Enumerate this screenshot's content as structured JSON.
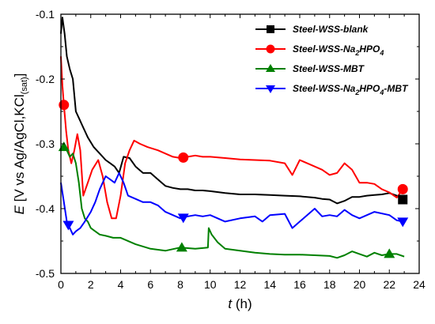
{
  "chart_data": {
    "type": "line",
    "xlabel_symbol": "t",
    "xlabel_unit": " (h)",
    "ylabel_symbol": "E",
    "ylabel_rest": " [V vs Ag/AgCl,KCl",
    "ylabel_sub": "(sat)",
    "ylabel_end": "]",
    "xlim": [
      0,
      24
    ],
    "ylim": [
      -0.5,
      -0.1
    ],
    "xticks": [
      "0",
      "2",
      "4",
      "6",
      "8",
      "10",
      "12",
      "14",
      "16",
      "18",
      "20",
      "22",
      "24"
    ],
    "yticks": [
      "-0.1",
      "-0.2",
      "-0.3",
      "-0.4",
      "-0.5"
    ],
    "legend_position": "top-right",
    "grid": false,
    "series": [
      {
        "name": "Steel-WSS-blank",
        "legend_parts": [
          [
            "Steel-WSS-blank",
            false
          ]
        ],
        "color": "#000000",
        "marker": "square",
        "marker_x": [
          22.9
        ],
        "x": [
          0,
          0.1,
          0.25,
          0.4,
          0.6,
          0.8,
          1.0,
          1.2,
          1.5,
          1.8,
          2.2,
          2.6,
          3.0,
          3.3,
          3.6,
          3.9,
          4.2,
          4.6,
          5.0,
          5.5,
          6.0,
          6.5,
          7.0,
          7.5,
          8.0,
          8.5,
          9.0,
          9.5,
          10.0,
          11.0,
          12.0,
          13.0,
          14.0,
          15.0,
          16.0,
          17.0,
          17.5,
          18.0,
          18.5,
          19.0,
          19.5,
          20.0,
          20.5,
          21.0,
          21.5,
          22.0,
          22.5,
          22.9
        ],
        "y": [
          -0.13,
          -0.105,
          -0.13,
          -0.165,
          -0.185,
          -0.2,
          -0.25,
          -0.26,
          -0.275,
          -0.29,
          -0.305,
          -0.315,
          -0.325,
          -0.33,
          -0.335,
          -0.345,
          -0.32,
          -0.322,
          -0.335,
          -0.345,
          -0.345,
          -0.355,
          -0.365,
          -0.368,
          -0.37,
          -0.37,
          -0.372,
          -0.372,
          -0.373,
          -0.376,
          -0.378,
          -0.378,
          -0.379,
          -0.38,
          -0.381,
          -0.383,
          -0.385,
          -0.386,
          -0.392,
          -0.388,
          -0.382,
          -0.382,
          -0.38,
          -0.379,
          -0.378,
          -0.376,
          -0.38,
          -0.386
        ]
      },
      {
        "name": "Steel-WSS-Na2HPO4",
        "legend_parts": [
          [
            "Steel-WSS-Na",
            false
          ],
          [
            "2",
            true
          ],
          [
            "HPO",
            false
          ],
          [
            "4",
            true
          ]
        ],
        "color": "#ff0000",
        "marker": "circle",
        "marker_x": [
          0.2,
          8.2,
          22.9
        ],
        "x": [
          0,
          0.1,
          0.2,
          0.35,
          0.5,
          0.7,
          0.9,
          1.1,
          1.3,
          1.5,
          1.8,
          2.1,
          2.5,
          2.8,
          3.1,
          3.4,
          3.7,
          4.0,
          4.3,
          4.6,
          4.9,
          5.3,
          5.8,
          6.5,
          7.0,
          7.5,
          8.0,
          8.5,
          9.0,
          9.5,
          10.0,
          11.0,
          12.0,
          13.0,
          14.0,
          15.0,
          15.5,
          16.0,
          16.5,
          17.0,
          17.5,
          18.0,
          18.5,
          19.0,
          19.5,
          20.0,
          20.5,
          21.0,
          21.5,
          22.0,
          22.5,
          22.9
        ],
        "y": [
          -0.165,
          -0.21,
          -0.24,
          -0.28,
          -0.31,
          -0.33,
          -0.31,
          -0.285,
          -0.31,
          -0.38,
          -0.36,
          -0.34,
          -0.325,
          -0.35,
          -0.39,
          -0.415,
          -0.415,
          -0.38,
          -0.33,
          -0.31,
          -0.295,
          -0.3,
          -0.305,
          -0.31,
          -0.315,
          -0.32,
          -0.322,
          -0.32,
          -0.318,
          -0.32,
          -0.32,
          -0.322,
          -0.324,
          -0.325,
          -0.326,
          -0.33,
          -0.348,
          -0.325,
          -0.33,
          -0.335,
          -0.34,
          -0.348,
          -0.345,
          -0.33,
          -0.34,
          -0.36,
          -0.36,
          -0.362,
          -0.37,
          -0.375,
          -0.383,
          -0.37
        ]
      },
      {
        "name": "Steel-WSS-MBT",
        "legend_parts": [
          [
            "Steel-WSS-MBT",
            false
          ]
        ],
        "color": "#008000",
        "marker": "triangle-up",
        "marker_x": [
          0.2,
          8.1,
          22.0
        ],
        "x": [
          0,
          0.2,
          0.4,
          0.6,
          0.8,
          1.0,
          1.2,
          1.4,
          1.6,
          1.8,
          2.0,
          2.3,
          2.6,
          3.0,
          3.5,
          4.0,
          5.0,
          6.0,
          7.0,
          8.0,
          9.0,
          9.85,
          9.9,
          10.1,
          10.5,
          11.0,
          12.0,
          13.0,
          14.0,
          15.0,
          16.0,
          17.0,
          18.0,
          18.5,
          19.0,
          19.5,
          20.0,
          20.5,
          21.0,
          21.5,
          22.0,
          22.5,
          23.0
        ],
        "y": [
          -0.31,
          -0.305,
          -0.31,
          -0.32,
          -0.315,
          -0.33,
          -0.36,
          -0.4,
          -0.415,
          -0.42,
          -0.43,
          -0.435,
          -0.44,
          -0.442,
          -0.445,
          -0.445,
          -0.455,
          -0.462,
          -0.465,
          -0.46,
          -0.462,
          -0.46,
          -0.43,
          -0.44,
          -0.452,
          -0.462,
          -0.465,
          -0.468,
          -0.47,
          -0.471,
          -0.471,
          -0.472,
          -0.473,
          -0.476,
          -0.472,
          -0.466,
          -0.47,
          -0.474,
          -0.468,
          -0.472,
          -0.47,
          -0.47,
          -0.474
        ]
      },
      {
        "name": "Steel-WSS-Na2HPO4-MBT",
        "legend_parts": [
          [
            "Steel-WSS-Na",
            false
          ],
          [
            "2",
            true
          ],
          [
            "HPO",
            false
          ],
          [
            "4",
            true
          ],
          [
            "-MBT",
            false
          ]
        ],
        "color": "#0000ff",
        "marker": "triangle-down",
        "marker_x": [
          0.5,
          8.2,
          22.9
        ],
        "x": [
          0,
          0.2,
          0.4,
          0.6,
          0.8,
          1.0,
          1.3,
          1.6,
          2.0,
          2.3,
          2.6,
          3.0,
          3.3,
          3.6,
          3.9,
          4.2,
          4.5,
          5.0,
          5.5,
          6.0,
          6.5,
          7.0,
          7.5,
          8.0,
          8.5,
          9.0,
          9.5,
          10.0,
          10.5,
          11.0,
          12.0,
          13.0,
          13.5,
          14.0,
          15.0,
          15.5,
          16.0,
          17.0,
          17.5,
          18.0,
          18.5,
          19.0,
          19.5,
          20.0,
          21.0,
          22.0,
          22.5,
          22.9
        ],
        "y": [
          -0.36,
          -0.39,
          -0.42,
          -0.43,
          -0.44,
          -0.435,
          -0.43,
          -0.42,
          -0.405,
          -0.39,
          -0.37,
          -0.35,
          -0.355,
          -0.36,
          -0.345,
          -0.36,
          -0.38,
          -0.385,
          -0.39,
          -0.39,
          -0.395,
          -0.405,
          -0.41,
          -0.415,
          -0.412,
          -0.41,
          -0.412,
          -0.41,
          -0.415,
          -0.42,
          -0.415,
          -0.412,
          -0.42,
          -0.41,
          -0.408,
          -0.43,
          -0.42,
          -0.4,
          -0.412,
          -0.41,
          -0.412,
          -0.402,
          -0.41,
          -0.415,
          -0.405,
          -0.41,
          -0.418,
          -0.42
        ]
      }
    ]
  }
}
